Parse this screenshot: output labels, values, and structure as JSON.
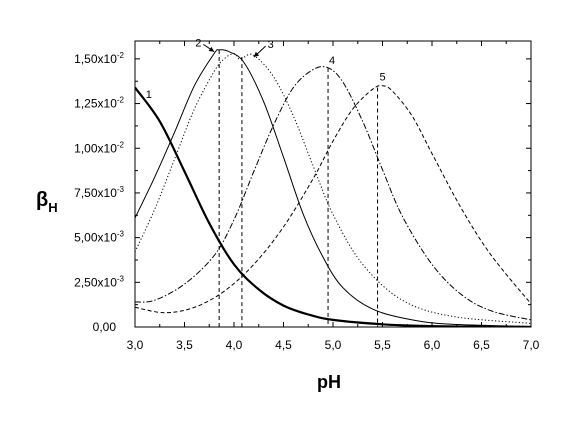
{
  "chart_data": {
    "type": "line",
    "xlabel": "pH",
    "ylabel": "β",
    "ylabel_sub": "H",
    "xlim": [
      3.0,
      7.0
    ],
    "ylim": [
      0,
      0.016
    ],
    "grid": false,
    "legend": "none",
    "x_ticks": [
      {
        "value": 3.0,
        "label": "3,0"
      },
      {
        "value": 3.5,
        "label": "3,5"
      },
      {
        "value": 4.0,
        "label": "4,0"
      },
      {
        "value": 4.5,
        "label": "4,5"
      },
      {
        "value": 5.0,
        "label": "5,0"
      },
      {
        "value": 5.5,
        "label": "5,5"
      },
      {
        "value": 6.0,
        "label": "6,0"
      },
      {
        "value": 6.5,
        "label": "6,5"
      },
      {
        "value": 7.0,
        "label": "7,0"
      }
    ],
    "y_ticks": [
      {
        "value": 0,
        "mantissa": "0,00",
        "exp": ""
      },
      {
        "value": 0.0025,
        "mantissa": "2,50x10",
        "exp": "-3"
      },
      {
        "value": 0.005,
        "mantissa": "5,00x10",
        "exp": "-3"
      },
      {
        "value": 0.0075,
        "mantissa": "7,50x10",
        "exp": "-3"
      },
      {
        "value": 0.01,
        "mantissa": "1,00x10",
        "exp": "-2"
      },
      {
        "value": 0.0125,
        "mantissa": "1,25x10",
        "exp": "-2"
      },
      {
        "value": 0.015,
        "mantissa": "1,50x10",
        "exp": "-2"
      }
    ],
    "series": [
      {
        "id": "1",
        "style": "solid-thick",
        "x": [
          3.0,
          3.25,
          3.5,
          3.75,
          4.0,
          4.25,
          4.5,
          4.75,
          5.0,
          5.5,
          6.0,
          6.5,
          7.0
        ],
        "y": [
          0.0134,
          0.0115,
          0.0087,
          0.0058,
          0.0035,
          0.0021,
          0.0012,
          0.0007,
          0.0004,
          0.00015,
          5e-05,
          2e-05,
          1e-05
        ]
      },
      {
        "id": "2",
        "style": "solid-thin",
        "x": [
          3.0,
          3.2,
          3.4,
          3.6,
          3.8,
          3.85,
          3.95,
          4.1,
          4.3,
          4.5,
          4.7,
          4.9,
          5.1,
          5.4,
          5.8,
          6.2,
          7.0
        ],
        "y": [
          0.0061,
          0.0084,
          0.0109,
          0.0135,
          0.0153,
          0.0155,
          0.0154,
          0.0148,
          0.0126,
          0.0095,
          0.0063,
          0.0039,
          0.0022,
          0.001,
          0.0004,
          0.00015,
          3e-05
        ]
      },
      {
        "id": "3",
        "style": "dotted",
        "x": [
          3.0,
          3.2,
          3.4,
          3.6,
          3.8,
          3.9,
          4.0,
          4.05,
          4.1,
          4.2,
          4.4,
          4.6,
          4.8,
          5.0,
          5.3,
          5.7,
          6.2,
          7.0
        ],
        "y": [
          0.0042,
          0.0066,
          0.0094,
          0.0122,
          0.0143,
          0.015,
          0.0153,
          0.015,
          0.0151,
          0.0152,
          0.014,
          0.0118,
          0.009,
          0.0063,
          0.0035,
          0.0015,
          0.0006,
          0.0002
        ]
      },
      {
        "id": "4",
        "style": "dash-dot",
        "x": [
          3.0,
          3.2,
          3.5,
          3.8,
          4.0,
          4.2,
          4.4,
          4.6,
          4.8,
          4.95,
          5.1,
          5.3,
          5.5,
          5.7,
          6.0,
          6.3,
          6.6,
          7.0
        ],
        "y": [
          0.0014,
          0.0015,
          0.0024,
          0.004,
          0.006,
          0.0087,
          0.0113,
          0.0134,
          0.0144,
          0.0145,
          0.0137,
          0.0115,
          0.0088,
          0.0062,
          0.0035,
          0.0018,
          0.0009,
          0.0004
        ]
      },
      {
        "id": "5",
        "style": "dashed",
        "x": [
          3.0,
          3.3,
          3.6,
          3.9,
          4.2,
          4.5,
          4.8,
          5.0,
          5.2,
          5.4,
          5.5,
          5.6,
          5.8,
          6.0,
          6.3,
          6.6,
          7.0
        ],
        "y": [
          0.0011,
          0.0008,
          0.0011,
          0.002,
          0.0035,
          0.0056,
          0.0083,
          0.0104,
          0.0122,
          0.0133,
          0.0135,
          0.0132,
          0.0118,
          0.0097,
          0.0066,
          0.004,
          0.0013
        ]
      }
    ],
    "markers": [
      {
        "x": 3.85,
        "y": 0.0155
      },
      {
        "x": 4.08,
        "y": 0.0151
      },
      {
        "x": 4.95,
        "y": 0.0145
      },
      {
        "x": 5.45,
        "y": 0.0134
      }
    ],
    "curve_labels": [
      {
        "text": "1",
        "x": 3.14,
        "y": 0.0128,
        "arrow": false
      },
      {
        "text": "2",
        "x": 3.64,
        "y": 0.0157,
        "arrow": true,
        "target_x": 3.8,
        "target_y": 0.0154
      },
      {
        "text": "3",
        "x": 4.37,
        "y": 0.0156,
        "arrow": true,
        "target_x": 4.2,
        "target_y": 0.0151
      },
      {
        "text": "4",
        "x": 4.99,
        "y": 0.0147,
        "arrow": false
      },
      {
        "text": "5",
        "x": 5.5,
        "y": 0.0138,
        "arrow": false
      }
    ]
  }
}
